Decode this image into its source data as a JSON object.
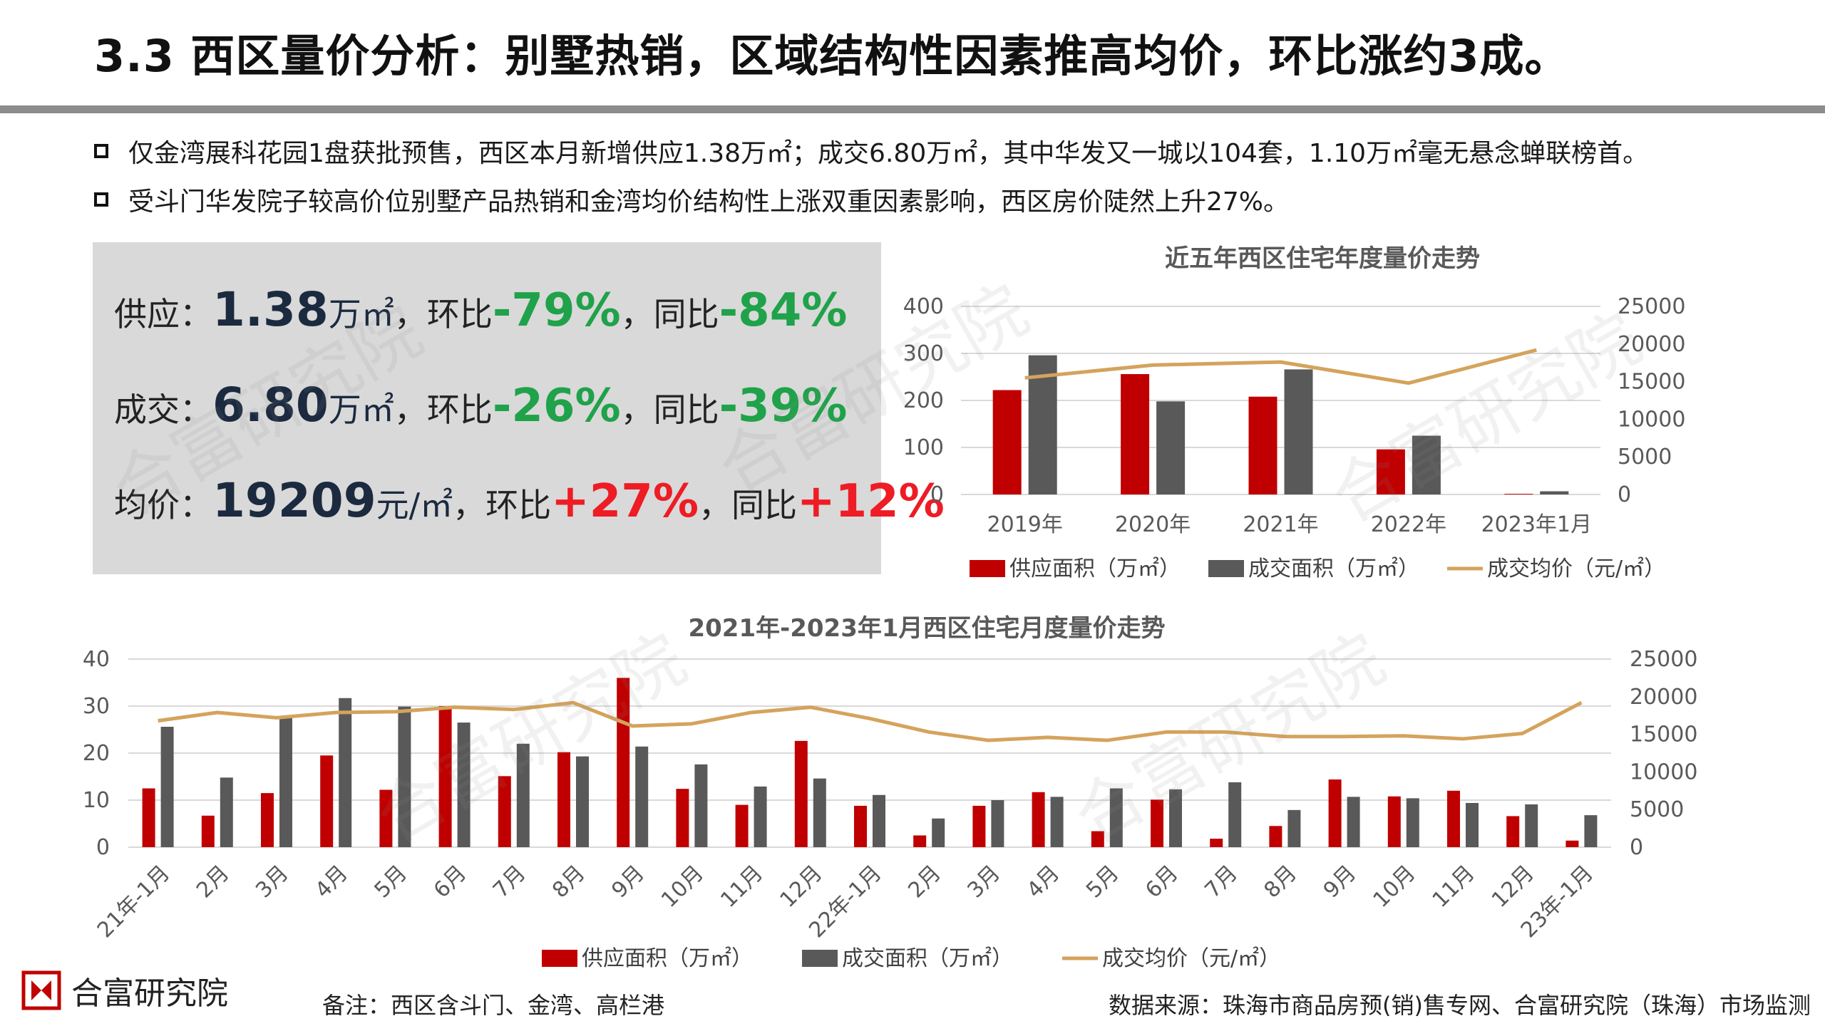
{
  "title": "3.3 西区量价分析：别墅热销，区域结构性因素推高均价，环比涨约3成。",
  "bullets": [
    "仅金湾展科花园1盘获批预售，西区本月新增供应1.38万㎡；成交6.80万㎡，其中华发又一城以104套，1.10万㎡毫无悬念蝉联榜首。",
    "受斗门华发院子较高价位别墅产品热销和金湾均价结构性上涨双重因素影响，西区房价陡然上升27%。"
  ],
  "stats": {
    "supply": {
      "label": "供应：",
      "value": "1.38",
      "unit": "万㎡",
      "mom_label": "，环比",
      "mom": "-79%",
      "yoy_label": "，同比",
      "yoy": "-84%"
    },
    "deal": {
      "label": "成交：",
      "value": "6.80",
      "unit": "万㎡",
      "mom_label": "，环比",
      "mom": "-26%",
      "yoy_label": "，同比",
      "yoy": "-39%"
    },
    "price": {
      "label": "均价：",
      "value": "19209",
      "unit": "元/㎡",
      "mom_label": "，环比",
      "mom": "+27%",
      "yoy_label": "，同比",
      "yoy": "+12%"
    }
  },
  "colors": {
    "supply": "#c00000",
    "deal": "#595959",
    "price": "#d4a35c",
    "green": "#1fa24a",
    "red": "#ee1c25",
    "panel": "#d9d9d9"
  },
  "watermark": "合富研究院",
  "logo_text": "合富研究院",
  "footnote_left": "备注：西区含斗门、金湾、高栏港",
  "footnote_right": "数据来源：珠海市商品房预(销)售专网、合富研究院（珠海）市场监测",
  "chart_data": [
    {
      "type": "bar",
      "title": "近五年西区住宅年度量价走势",
      "categories": [
        "2019年",
        "2020年",
        "2021年",
        "2022年",
        "2023年1月"
      ],
      "series": [
        {
          "name": "供应面积（万㎡）",
          "kind": "bar",
          "axis": "left",
          "values": [
            222,
            256,
            208,
            96,
            1.4
          ]
        },
        {
          "name": "成交面积（万㎡）",
          "kind": "bar",
          "axis": "left",
          "values": [
            296,
            198,
            266,
            125,
            6.8
          ]
        },
        {
          "name": "成交均价（元/㎡）",
          "kind": "line",
          "axis": "right",
          "values": [
            15500,
            17200,
            17600,
            14800,
            19209
          ]
        }
      ],
      "y_left": {
        "min": 0,
        "max": 400,
        "ticks": [
          0,
          100,
          200,
          300,
          400
        ]
      },
      "y_right": {
        "min": 0,
        "max": 25000,
        "ticks": [
          0,
          5000,
          10000,
          15000,
          20000,
          25000
        ]
      },
      "grid": true,
      "legend": "bottom"
    },
    {
      "type": "bar",
      "title": "2021年-2023年1月西区住宅月度量价走势",
      "categories": [
        "21年-1月",
        "2月",
        "3月",
        "4月",
        "5月",
        "6月",
        "7月",
        "8月",
        "9月",
        "10月",
        "11月",
        "12月",
        "22年-1月",
        "2月",
        "3月",
        "4月",
        "5月",
        "6月",
        "7月",
        "8月",
        "9月",
        "10月",
        "11月",
        "12月",
        "23年-1月"
      ],
      "series": [
        {
          "name": "供应面积（万㎡）",
          "kind": "bar",
          "axis": "left",
          "values": [
            12.5,
            6.7,
            11.5,
            19.5,
            12.2,
            30.0,
            15.1,
            20.2,
            36.0,
            12.4,
            9.0,
            22.6,
            8.8,
            2.5,
            8.8,
            11.7,
            3.4,
            10.1,
            1.8,
            4.5,
            14.4,
            10.8,
            12.0,
            6.6,
            1.4
          ]
        },
        {
          "name": "成交面积（万㎡）",
          "kind": "bar",
          "axis": "left",
          "values": [
            25.6,
            14.8,
            27.6,
            31.7,
            29.9,
            26.5,
            22.0,
            19.3,
            21.4,
            17.6,
            12.9,
            14.6,
            11.1,
            6.1,
            10.0,
            10.7,
            12.5,
            12.3,
            13.8,
            7.9,
            10.7,
            10.4,
            9.4,
            9.1,
            6.8
          ]
        },
        {
          "name": "成交均价（元/㎡）",
          "kind": "line",
          "axis": "right",
          "values": [
            16800,
            17900,
            17200,
            17900,
            18000,
            18600,
            18300,
            19200,
            16100,
            16400,
            17900,
            18600,
            17100,
            15300,
            14200,
            14600,
            14200,
            15300,
            15300,
            14700,
            14700,
            14800,
            14400,
            15100,
            19209
          ]
        }
      ],
      "y_left": {
        "min": 0,
        "max": 40,
        "ticks": [
          0,
          10,
          20,
          30,
          40
        ]
      },
      "y_right": {
        "min": 0,
        "max": 25000,
        "ticks": [
          0,
          5000,
          10000,
          15000,
          20000,
          25000
        ]
      },
      "grid": true,
      "legend": "bottom"
    }
  ]
}
